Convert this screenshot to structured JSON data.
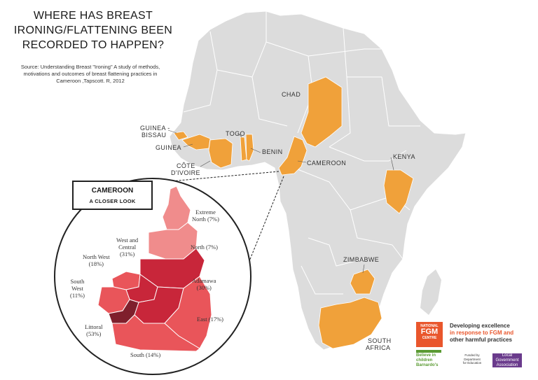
{
  "title_lines": [
    "WHERE HAS BREAST",
    "IRONING/FLATTENING BEEN",
    "RECORDED TO HAPPEN?"
  ],
  "source_lines": [
    "Source: Understanding Breast \"Ironing\" A study of methods,",
    "motivations and outcomes of breast flattening practices in",
    "Cameroon ,Tapscott. R, 2012"
  ],
  "colors": {
    "land": "#dcdcdc",
    "border": "#ffffff",
    "highlight": "#f0a13a",
    "region_light": "#f08c8c",
    "region_mid": "#e9555a",
    "region_dark": "#c8263a",
    "region_darkest": "#7f1f2c"
  },
  "countries_labeled": {
    "chad": "CHAD",
    "guinea_bissau_1": "GUINEA -",
    "guinea_bissau_2": "BISSAU",
    "togo": "TOGO",
    "guinea": "GUINEA",
    "benin": "BENIN",
    "cote_divoire_1": "CÔTE",
    "cote_divoire_2": "D'IVOIRE",
    "cameroon": "CAMEROON",
    "kenya": "KENYA",
    "zimbabwe": "ZIMBABWE",
    "south_africa_1": "SOUTH",
    "south_africa_2": "AFRICA"
  },
  "callout": {
    "title": "CAMEROON",
    "subtitle": "A CLOSER LOOK"
  },
  "regions": {
    "extreme_north": {
      "name": "Extreme",
      "name2": "North",
      "pct": "(7%)"
    },
    "north": {
      "name": "North",
      "pct": "(7%)"
    },
    "west_central": {
      "name": "West and",
      "name2": "Central",
      "pct": "(31%)"
    },
    "north_west": {
      "name": "North West",
      "pct": "(18%)"
    },
    "adamawa": {
      "name": "Adamawa",
      "pct": "(30%)"
    },
    "south_west": {
      "name": "South",
      "name2": "West",
      "pct": "(11%)"
    },
    "east": {
      "name": "East",
      "pct": "(17%)"
    },
    "littoral": {
      "name": "Littoral",
      "pct": "(53%)"
    },
    "south": {
      "name": "South",
      "pct": "(14%)"
    }
  },
  "logo": {
    "badge_1": "NATIONAL",
    "badge_2": "FGM",
    "badge_3": "CENTRE",
    "tagline_1": "Developing excellence",
    "tagline_2": "in response to FGM and",
    "tagline_3": "other harmful practices",
    "barnardos_1": "Believe in",
    "barnardos_2": "children",
    "barnardos_3": "Barnardo's",
    "dfe_1": "Funded by",
    "dfe_2": "Department",
    "dfe_3": "for Education",
    "lga_1": "Local",
    "lga_2": "Government",
    "lga_3": "Association"
  }
}
